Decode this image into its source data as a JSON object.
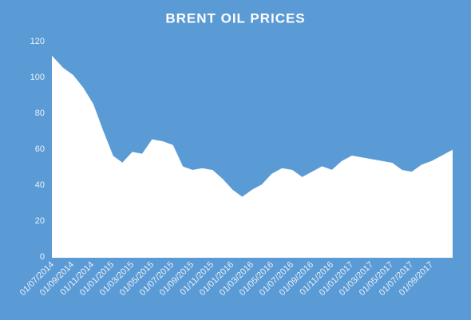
{
  "chart_data": {
    "type": "area",
    "title": "BRENT OIL PRICES",
    "categories": [
      "01/07/2014",
      null,
      "01/09/2014",
      null,
      "01/11/2014",
      null,
      "01/01/2015",
      null,
      "01/03/2015",
      null,
      "01/05/2015",
      null,
      "01/07/2015",
      null,
      "01/09/2015",
      null,
      "01/11/2015",
      null,
      "01/01/2016",
      null,
      "01/03/2016",
      null,
      "01/05/2016",
      null,
      "01/07/2016",
      null,
      "01/09/2016",
      null,
      "01/11/2016",
      null,
      "01/01/2017",
      null,
      "01/03/2017",
      null,
      "01/05/2017",
      null,
      "01/07/2017",
      null,
      "01/09/2017",
      null,
      null
    ],
    "values": [
      111,
      105,
      101,
      94,
      85,
      70,
      56,
      52,
      58,
      57,
      65,
      64,
      62,
      50,
      48,
      49,
      48,
      43,
      37,
      33,
      37,
      40,
      46,
      49,
      48,
      44,
      47,
      50,
      48,
      53,
      56,
      55,
      54,
      53,
      52,
      48,
      47,
      51,
      53,
      56,
      59
    ],
    "color": "#ffffff",
    "ylim": [
      0,
      120
    ],
    "yticks": [
      0,
      20,
      40,
      60,
      80,
      100,
      120
    ],
    "grid": false
  }
}
